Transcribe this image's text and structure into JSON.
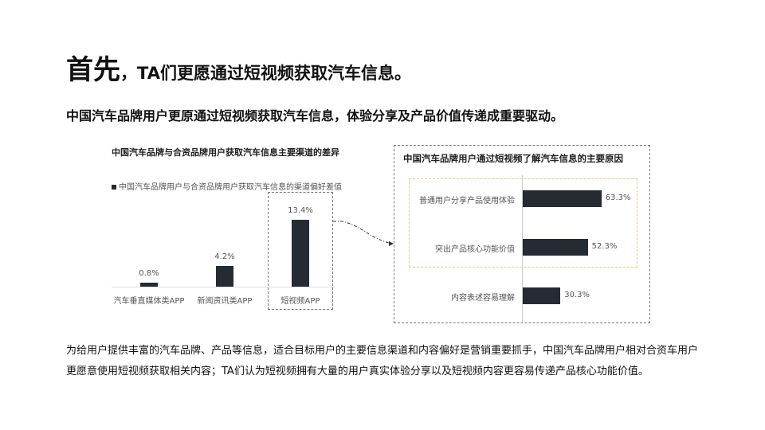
{
  "header": {
    "title_lead": "首先",
    "title_punct": "，",
    "title_rest": "TA们更愿通过短视频获取汽车信息。"
  },
  "subtitle": "中国汽车品牌用户更原通过短视频获取汽车信息，体验分享及产品价值传递成重要驱动。",
  "paragraph": "为给用户提供丰富的汽车品牌、产品等信息，适合目标用户的主要信息渠道和内容偏好是营销重要抓手，中国汽车品牌用户相对合资车用户更愿意使用短视频获取相关内容；TA们认为短视频拥有大量的用户真实体验分享以及短视频内容更容易传递产品核心功能价值。",
  "chart_data": [
    {
      "type": "bar",
      "title": "中国汽车品牌与合资品牌用户获取汽车信息主要渠道的差异",
      "legend": "中国汽车品牌用户与合资品牌用户获取汽车信息的渠道偏好差值",
      "legend_placement": "top-left",
      "categories": [
        "汽车垂直媒体类APP",
        "新闻资讯类APP",
        "短视频APP"
      ],
      "values": [
        0.8,
        4.2,
        13.4
      ],
      "labels": [
        "0.8%",
        "4.2%",
        "13.4%"
      ],
      "unit": "%",
      "highlight": "短视频APP",
      "color": "#262a33"
    },
    {
      "type": "bar",
      "orientation": "horizontal",
      "title": "中国汽车品牌用户通过短视频了解汽车信息的主要原因",
      "categories": [
        "普通用户分享产品使用体验",
        "突出产品核心功能价值",
        "内容表述容易理解"
      ],
      "values": [
        63.3,
        52.3,
        30.3
      ],
      "labels": [
        "63.3%",
        "52.3%",
        "30.3%"
      ],
      "unit": "%",
      "highlight_color": "#e0cf8a",
      "color": "#262a33"
    }
  ]
}
